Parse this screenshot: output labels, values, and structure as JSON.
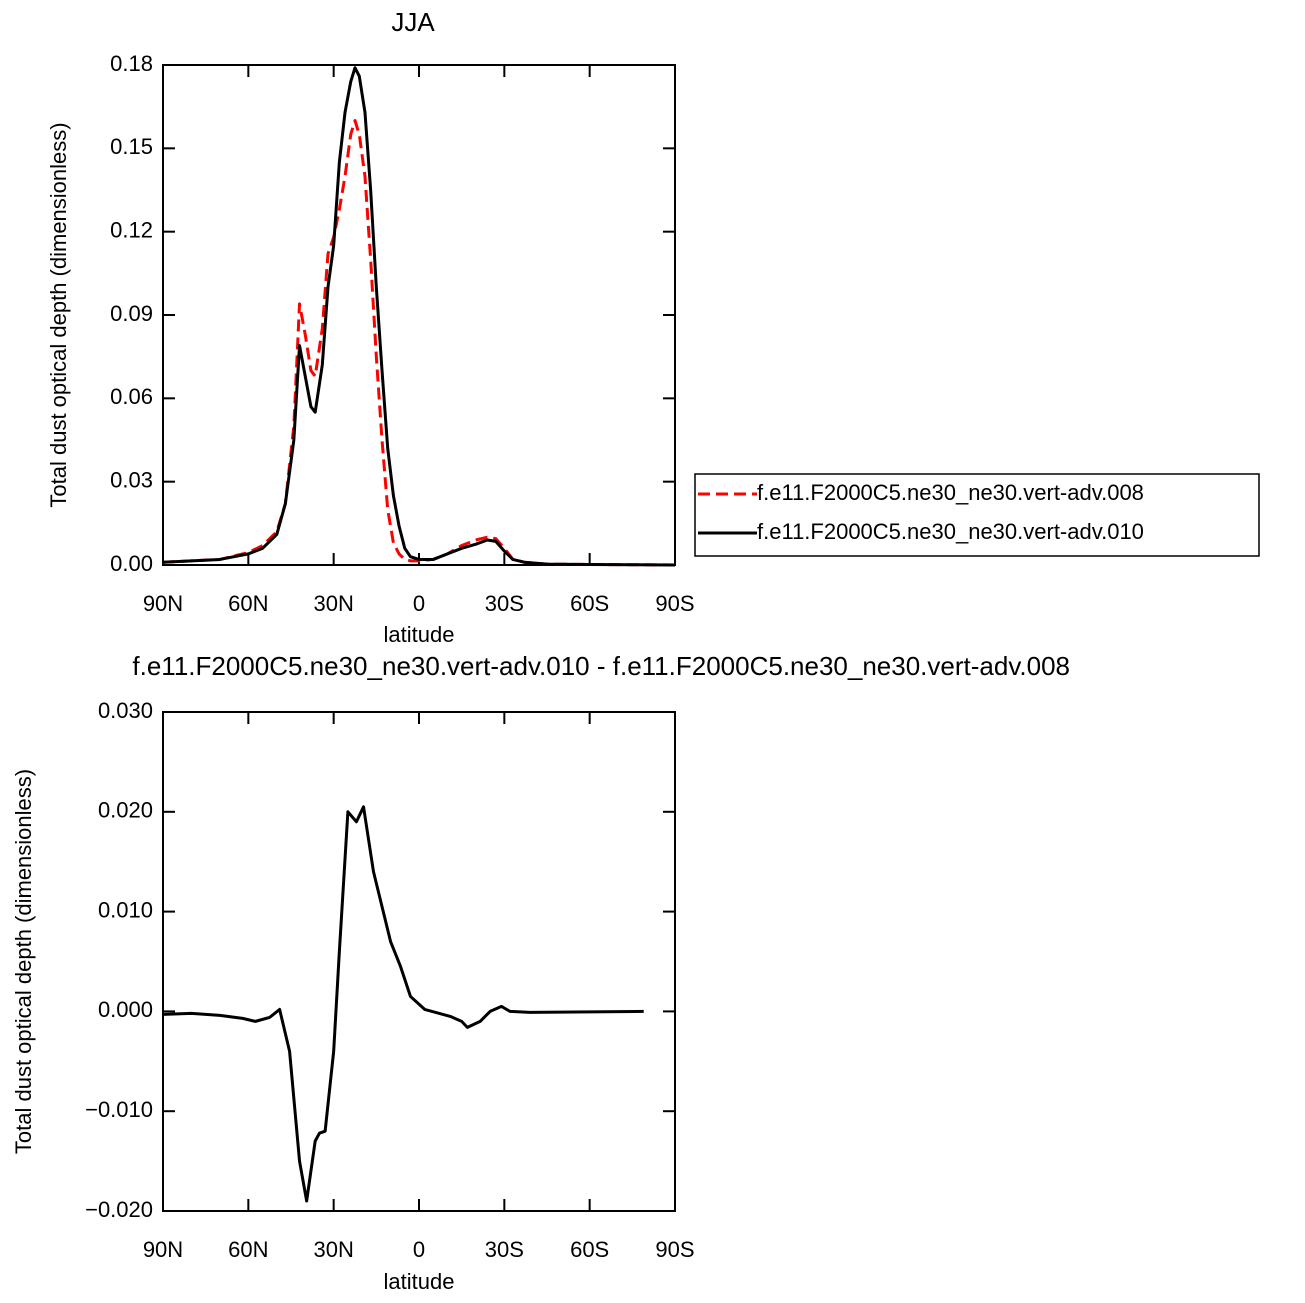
{
  "chart_data": [
    {
      "type": "line",
      "title": "JJA",
      "x_label": "latitude",
      "y_label": "Total dust optical depth (dimensionless)",
      "x": [
        90,
        80,
        70,
        60,
        55,
        50,
        47,
        44,
        42,
        40,
        38,
        36.5,
        34,
        32,
        30,
        28,
        26,
        24,
        22.5,
        21,
        19,
        17,
        15,
        13,
        11,
        9,
        7,
        5,
        3,
        0,
        -5,
        -10,
        -15,
        -20,
        -24,
        -27,
        -30,
        -33,
        -37,
        -45,
        -60,
        -75,
        -90
      ],
      "series": [
        {
          "name": "f.e11.F2000C5.ne30_ne30.vert-adv.008",
          "color": "#ff0000",
          "style": "dashed",
          "values": [
            0.001,
            0.0015,
            0.002,
            0.0045,
            0.007,
            0.012,
            0.022,
            0.05,
            0.094,
            0.083,
            0.07,
            0.068,
            0.085,
            0.112,
            0.118,
            0.128,
            0.14,
            0.155,
            0.16,
            0.155,
            0.14,
            0.11,
            0.075,
            0.045,
            0.02,
            0.008,
            0.004,
            0.002,
            0.0015,
            0.0015,
            0.002,
            0.004,
            0.007,
            0.009,
            0.01,
            0.0095,
            0.006,
            0.002,
            0.001,
            0.0003,
            0.0002,
            0.0001,
            0
          ]
        },
        {
          "name": "f.e11.F2000C5.ne30_ne30.vert-adv.010",
          "color": "#000000",
          "style": "solid",
          "values": [
            0.001,
            0.0015,
            0.002,
            0.004,
            0.006,
            0.011,
            0.022,
            0.045,
            0.079,
            0.068,
            0.057,
            0.055,
            0.072,
            0.1,
            0.115,
            0.145,
            0.163,
            0.174,
            0.179,
            0.176,
            0.163,
            0.135,
            0.1,
            0.07,
            0.042,
            0.025,
            0.014,
            0.006,
            0.003,
            0.002,
            0.002,
            0.004,
            0.006,
            0.0075,
            0.009,
            0.0085,
            0.005,
            0.002,
            0.001,
            0.0003,
            0.0002,
            0.0001,
            0
          ]
        }
      ],
      "xlim": [
        90,
        -90
      ],
      "xticks": [
        {
          "value": 90,
          "label": "90N"
        },
        {
          "value": 60,
          "label": "60N"
        },
        {
          "value": 30,
          "label": "30N"
        },
        0,
        {
          "value": -30,
          "label": "30S"
        },
        {
          "value": -60,
          "label": "60S"
        },
        {
          "value": -90,
          "label": "90S"
        }
      ],
      "ylim": [
        0,
        0.18
      ],
      "yticks": [
        {
          "value": 0,
          "label": "0.00"
        },
        0.03,
        0.06,
        0.09,
        0.12,
        0.15,
        0.18
      ],
      "legend": "right"
    },
    {
      "type": "line",
      "title": "f.e11.F2000C5.ne30_ne30.vert-adv.010 - f.e11.F2000C5.ne30_ne30.vert-adv.008",
      "x_label": "latitude",
      "y_label": "Total dust optical depth (dimensionless)",
      "x": [
        90,
        80,
        70,
        62,
        57.5,
        52.5,
        49,
        45.5,
        42,
        39.5,
        36.5,
        35,
        33,
        30,
        28,
        25,
        22,
        19.5,
        16,
        10,
        6.5,
        3,
        -2,
        -11,
        -15,
        -17,
        -21.5,
        -25,
        -29,
        -32,
        -39,
        -79
      ],
      "values": [
        -0.0003,
        -0.0002,
        -0.0004,
        -0.0007,
        -0.001,
        -0.0006,
        0.0002,
        -0.004,
        -0.015,
        -0.019,
        -0.013,
        -0.0122,
        -0.012,
        -0.004,
        0.006,
        0.02,
        0.019,
        0.0205,
        0.014,
        0.007,
        0.0045,
        0.0015,
        0.0002,
        -0.0005,
        -0.001,
        -0.0016,
        -0.001,
        0,
        0.0005,
        0,
        -0.0001,
        0
      ],
      "color": "#000000",
      "xlim": [
        90,
        -90
      ],
      "xticks": [
        {
          "value": 90,
          "label": "90N"
        },
        {
          "value": 60,
          "label": "60N"
        },
        {
          "value": 30,
          "label": "30N"
        },
        0,
        {
          "value": -30,
          "label": "30S"
        },
        {
          "value": -60,
          "label": "60S"
        },
        {
          "value": -90,
          "label": "90S"
        }
      ],
      "ylim": [
        -0.02,
        0.03
      ],
      "yticks": [
        {
          "value": -0.02,
          "label": "−0.020"
        },
        {
          "value": -0.01,
          "label": "−0.010"
        },
        {
          "value": 0,
          "label": "0.000"
        },
        {
          "value": 0.01,
          "label": "0.010"
        },
        {
          "value": 0.02,
          "label": "0.020"
        },
        {
          "value": 0.03,
          "label": "0.030"
        }
      ]
    }
  ]
}
